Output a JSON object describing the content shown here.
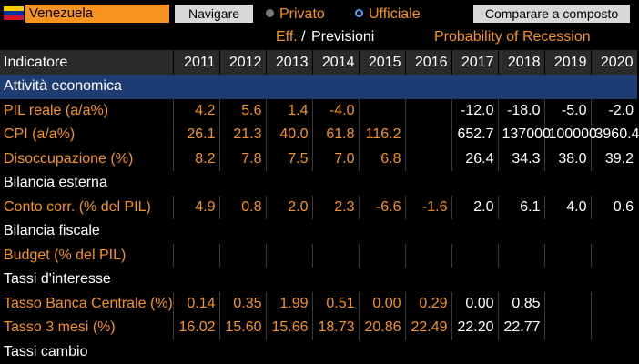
{
  "header": {
    "country": "Venezuela",
    "navigate_label": "Navigare",
    "radio_private": "Privato",
    "radio_official": "Ufficiale",
    "compare_label": "Comparare a composto",
    "sub_eff": "Eff.",
    "sub_sep": "/",
    "sub_forecast": "Previsioni",
    "sub_probability": "Probability of Recession",
    "flag_colors": [
      "#ffcc00",
      "#0033a0",
      "#cf142b"
    ]
  },
  "table": {
    "header_label": "Indicatore",
    "years": [
      "2011",
      "2012",
      "2013",
      "2014",
      "2015",
      "2016",
      "2017",
      "2018",
      "2019",
      "2020"
    ],
    "rows": [
      {
        "type": "section",
        "label": "Attività economica"
      },
      {
        "type": "data",
        "label": "PIL reale (a/a%)",
        "values": [
          "4.2",
          "5.6",
          "1.4",
          "-4.0",
          "",
          "",
          "-12.0",
          "-18.0",
          "-5.0",
          "-2.0"
        ]
      },
      {
        "type": "data",
        "label": "CPI (a/a%)",
        "values": [
          "26.1",
          "21.3",
          "40.0",
          "61.8",
          "116.2",
          "",
          "652.7",
          "137000",
          "100000",
          "3960.4"
        ]
      },
      {
        "type": "data",
        "label": "Disoccupazione (%)",
        "values": [
          "8.2",
          "7.8",
          "7.5",
          "7.0",
          "6.8",
          "",
          "26.4",
          "34.3",
          "38.0",
          "39.2"
        ]
      },
      {
        "type": "group",
        "label": "Bilancia esterna"
      },
      {
        "type": "data",
        "label": "Conto corr. (% del PIL)",
        "values": [
          "4.9",
          "0.8",
          "2.0",
          "2.3",
          "-6.6",
          "-1.6",
          "2.0",
          "6.1",
          "4.0",
          "0.6"
        ]
      },
      {
        "type": "group",
        "label": "Bilancia fiscale"
      },
      {
        "type": "data",
        "label": "Budget (% del PIL)",
        "values": [
          "",
          "",
          "",
          "",
          "",
          "",
          "",
          "",
          "",
          ""
        ]
      },
      {
        "type": "group",
        "label": "Tassi d'interesse"
      },
      {
        "type": "data",
        "label": "Tasso Banca Centrale (%)",
        "values": [
          "0.14",
          "0.35",
          "1.99",
          "0.51",
          "0.00",
          "0.29",
          "0.00",
          "0.85",
          "",
          ""
        ]
      },
      {
        "type": "data",
        "label": "Tasso 3 mesi (%)",
        "values": [
          "16.02",
          "15.60",
          "15.66",
          "18.73",
          "20.86",
          "22.49",
          "22.20",
          "22.77",
          "",
          ""
        ]
      },
      {
        "type": "group",
        "label": "Tassi cambio"
      }
    ]
  }
}
